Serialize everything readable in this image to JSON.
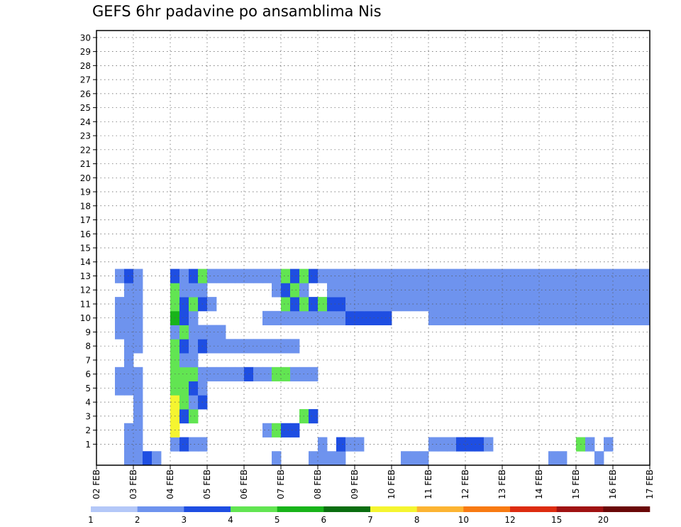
{
  "chart_data": {
    "type": "heatmap",
    "title": "GEFS 6hr padavine po ansamblima Nis",
    "x_tick_labels": [
      "02 FEB",
      "03 FEB",
      "04 FEB",
      "05 FEB",
      "06 FEB",
      "07 FEB",
      "08 FEB",
      "09 FEB",
      "10 FEB",
      "11 FEB",
      "12 FEB",
      "13 FEB",
      "14 FEB",
      "15 FEB",
      "16 FEB",
      "17 FEB"
    ],
    "x_tick_steps": [
      0,
      4,
      8,
      12,
      16,
      20,
      24,
      28,
      32,
      36,
      40,
      44,
      48,
      52,
      56,
      60
    ],
    "n_steps": 60,
    "n_members": 30,
    "y_tick_labels": [
      "1",
      "2",
      "3",
      "4",
      "5",
      "6",
      "7",
      "8",
      "9",
      "10",
      "11",
      "12",
      "13",
      "14",
      "15",
      "16",
      "17",
      "18",
      "19",
      "20",
      "21",
      "22",
      "23",
      "24",
      "25",
      "26",
      "27",
      "28",
      "29",
      "30"
    ],
    "grid": "dotted",
    "legend": {
      "placement": "bottom",
      "colors": [
        "#b4c8f8",
        "#6e93ee",
        "#1e4ee2",
        "#62e552",
        "#18b41a",
        "#0a6e10",
        "#f5f530",
        "#fcb432",
        "#f87a12",
        "#dd2c10",
        "#a01212",
        "#6a0808"
      ],
      "labels": [
        "1",
        "2",
        "3",
        "4",
        "5",
        "6",
        "7",
        "8",
        "10",
        "12",
        "15",
        "20"
      ]
    },
    "cells": [
      [
        0,
        3,
        1,
        1
      ],
      [
        0,
        4,
        1,
        1
      ],
      [
        0,
        5,
        2,
        1
      ],
      [
        0,
        6,
        1,
        1
      ],
      [
        0,
        19,
        1,
        1
      ],
      [
        0,
        23,
        1,
        1
      ],
      [
        0,
        24,
        1,
        1
      ],
      [
        0,
        25,
        1,
        1
      ],
      [
        0,
        26,
        1,
        1
      ],
      [
        0,
        33,
        1,
        1
      ],
      [
        0,
        34,
        1,
        1
      ],
      [
        0,
        35,
        1,
        1
      ],
      [
        0,
        49,
        1,
        1
      ],
      [
        0,
        50,
        1,
        1
      ],
      [
        0,
        54,
        1,
        1
      ],
      [
        1,
        3,
        1,
        1
      ],
      [
        1,
        4,
        1,
        1
      ],
      [
        1,
        8,
        1,
        1
      ],
      [
        1,
        9,
        2,
        1
      ],
      [
        1,
        10,
        1,
        1
      ],
      [
        1,
        11,
        1,
        1
      ],
      [
        1,
        24,
        1,
        1
      ],
      [
        1,
        26,
        2,
        1
      ],
      [
        1,
        27,
        1,
        1
      ],
      [
        1,
        28,
        1,
        1
      ],
      [
        1,
        36,
        1,
        1
      ],
      [
        1,
        37,
        1,
        1
      ],
      [
        1,
        38,
        1,
        1
      ],
      [
        1,
        39,
        2,
        1
      ],
      [
        1,
        40,
        2,
        1
      ],
      [
        1,
        41,
        2,
        1
      ],
      [
        1,
        42,
        1,
        1
      ],
      [
        1,
        52,
        3,
        1
      ],
      [
        1,
        53,
        1,
        1
      ],
      [
        1,
        55,
        1,
        1
      ],
      [
        2,
        3,
        1,
        1
      ],
      [
        2,
        4,
        1,
        1
      ],
      [
        2,
        8,
        6,
        1
      ],
      [
        2,
        18,
        1,
        1
      ],
      [
        2,
        19,
        3,
        1
      ],
      [
        2,
        20,
        2,
        1
      ],
      [
        2,
        21,
        2,
        1
      ],
      [
        3,
        4,
        1,
        1
      ],
      [
        3,
        8,
        6,
        1
      ],
      [
        3,
        9,
        2,
        1
      ],
      [
        3,
        10,
        3,
        1
      ],
      [
        3,
        22,
        3,
        1
      ],
      [
        3,
        23,
        2,
        1
      ],
      [
        4,
        4,
        1,
        1
      ],
      [
        4,
        8,
        6,
        1
      ],
      [
        4,
        9,
        3,
        1
      ],
      [
        4,
        10,
        1,
        1
      ],
      [
        4,
        11,
        2,
        1
      ],
      [
        5,
        2,
        1,
        1
      ],
      [
        5,
        3,
        1,
        1
      ],
      [
        5,
        4,
        1,
        1
      ],
      [
        5,
        8,
        3,
        1
      ],
      [
        5,
        9,
        3,
        1
      ],
      [
        5,
        10,
        2,
        1
      ],
      [
        5,
        11,
        1,
        1
      ],
      [
        6,
        2,
        1,
        1
      ],
      [
        6,
        3,
        1,
        1
      ],
      [
        6,
        4,
        1,
        1
      ],
      [
        6,
        8,
        3,
        1
      ],
      [
        6,
        9,
        3,
        1
      ],
      [
        6,
        10,
        3,
        1
      ],
      [
        6,
        11,
        1,
        1
      ],
      [
        6,
        12,
        1,
        1
      ],
      [
        6,
        13,
        1,
        1
      ],
      [
        6,
        14,
        1,
        1
      ],
      [
        6,
        15,
        1,
        1
      ],
      [
        6,
        16,
        2,
        1
      ],
      [
        6,
        17,
        1,
        1
      ],
      [
        6,
        18,
        1,
        1
      ],
      [
        6,
        19,
        3,
        1
      ],
      [
        6,
        20,
        3,
        1
      ],
      [
        6,
        21,
        1,
        1
      ],
      [
        6,
        22,
        1,
        1
      ],
      [
        6,
        23,
        1,
        1
      ],
      [
        7,
        3,
        1,
        1
      ],
      [
        7,
        8,
        3,
        1
      ],
      [
        7,
        9,
        1,
        1
      ],
      [
        7,
        10,
        1,
        1
      ],
      [
        8,
        3,
        1,
        1
      ],
      [
        8,
        4,
        1,
        1
      ],
      [
        8,
        8,
        3,
        1
      ],
      [
        8,
        9,
        2,
        1
      ],
      [
        8,
        10,
        1,
        1
      ],
      [
        8,
        11,
        2,
        1
      ],
      [
        8,
        12,
        1,
        1
      ],
      [
        8,
        13,
        1,
        1
      ],
      [
        8,
        14,
        1,
        1
      ],
      [
        8,
        15,
        1,
        1
      ],
      [
        8,
        16,
        1,
        1
      ],
      [
        8,
        17,
        1,
        1
      ],
      [
        8,
        18,
        1,
        1
      ],
      [
        8,
        19,
        1,
        1
      ],
      [
        8,
        20,
        1,
        1
      ],
      [
        8,
        21,
        1,
        1
      ],
      [
        9,
        2,
        1,
        1
      ],
      [
        9,
        3,
        1,
        1
      ],
      [
        9,
        4,
        1,
        1
      ],
      [
        9,
        8,
        1,
        1
      ],
      [
        9,
        9,
        3,
        1
      ],
      [
        9,
        10,
        1,
        1
      ],
      [
        9,
        11,
        1,
        1
      ],
      [
        9,
        12,
        1,
        1
      ],
      [
        9,
        13,
        1,
        1
      ],
      [
        10,
        2,
        1,
        1
      ],
      [
        10,
        3,
        1,
        1
      ],
      [
        10,
        4,
        1,
        1
      ],
      [
        10,
        8,
        4,
        1
      ],
      [
        10,
        9,
        2,
        1
      ],
      [
        10,
        10,
        1,
        1
      ],
      [
        10,
        18,
        1,
        1
      ],
      [
        10,
        19,
        1,
        1
      ],
      [
        10,
        20,
        1,
        1
      ],
      [
        10,
        21,
        1,
        1
      ],
      [
        10,
        22,
        1,
        1
      ],
      [
        10,
        23,
        1,
        1
      ],
      [
        10,
        24,
        1,
        1
      ],
      [
        10,
        25,
        1,
        1
      ],
      [
        10,
        26,
        1,
        1
      ],
      [
        10,
        27,
        2,
        1
      ],
      [
        10,
        28,
        2,
        1
      ],
      [
        10,
        29,
        2,
        1
      ],
      [
        10,
        30,
        2,
        1
      ],
      [
        10,
        31,
        2,
        1
      ],
      [
        10,
        36,
        1,
        1
      ],
      [
        10,
        37,
        1,
        1
      ],
      [
        10,
        38,
        1,
        1
      ],
      [
        10,
        39,
        1,
        1
      ],
      [
        10,
        40,
        1,
        1
      ],
      [
        10,
        41,
        1,
        1
      ],
      [
        10,
        42,
        1,
        1
      ],
      [
        10,
        43,
        1,
        1
      ],
      [
        10,
        44,
        1,
        1
      ],
      [
        10,
        45,
        1,
        1
      ],
      [
        10,
        46,
        1,
        1
      ],
      [
        10,
        47,
        1,
        1
      ],
      [
        10,
        48,
        1,
        1
      ],
      [
        10,
        49,
        1,
        1
      ],
      [
        10,
        50,
        1,
        1
      ],
      [
        10,
        51,
        1,
        1
      ],
      [
        10,
        52,
        1,
        1
      ],
      [
        10,
        53,
        1,
        1
      ],
      [
        10,
        54,
        1,
        1
      ],
      [
        10,
        55,
        1,
        1
      ],
      [
        10,
        56,
        1,
        1
      ],
      [
        10,
        57,
        1,
        1
      ],
      [
        10,
        58,
        1,
        1
      ],
      [
        10,
        59,
        1,
        1
      ],
      [
        11,
        2,
        1,
        1
      ],
      [
        11,
        3,
        1,
        1
      ],
      [
        11,
        4,
        1,
        1
      ],
      [
        11,
        8,
        3,
        1
      ],
      [
        11,
        9,
        2,
        1
      ],
      [
        11,
        10,
        3,
        1
      ],
      [
        11,
        11,
        2,
        1
      ],
      [
        11,
        12,
        1,
        1
      ],
      [
        11,
        20,
        3,
        1
      ],
      [
        11,
        21,
        2,
        1
      ],
      [
        11,
        22,
        3,
        1
      ],
      [
        11,
        23,
        2,
        1
      ],
      [
        11,
        24,
        3,
        1
      ],
      [
        11,
        25,
        2,
        1
      ],
      [
        11,
        26,
        2,
        1
      ],
      [
        11,
        27,
        1,
        1
      ],
      [
        11,
        28,
        1,
        1
      ],
      [
        11,
        29,
        1,
        1
      ],
      [
        11,
        30,
        1,
        1
      ],
      [
        11,
        31,
        1,
        1
      ],
      [
        11,
        32,
        1,
        1
      ],
      [
        11,
        33,
        1,
        1
      ],
      [
        11,
        34,
        1,
        1
      ],
      [
        11,
        35,
        1,
        1
      ],
      [
        11,
        36,
        1,
        1
      ],
      [
        11,
        37,
        1,
        1
      ],
      [
        11,
        38,
        1,
        1
      ],
      [
        11,
        39,
        1,
        1
      ],
      [
        11,
        40,
        1,
        1
      ],
      [
        11,
        41,
        1,
        1
      ],
      [
        11,
        42,
        1,
        1
      ],
      [
        11,
        43,
        1,
        1
      ],
      [
        11,
        44,
        1,
        1
      ],
      [
        11,
        45,
        1,
        1
      ],
      [
        11,
        46,
        1,
        1
      ],
      [
        11,
        47,
        1,
        1
      ],
      [
        11,
        48,
        1,
        1
      ],
      [
        11,
        49,
        1,
        1
      ],
      [
        11,
        50,
        1,
        1
      ],
      [
        11,
        51,
        1,
        1
      ],
      [
        11,
        52,
        1,
        1
      ],
      [
        11,
        53,
        1,
        1
      ],
      [
        11,
        54,
        1,
        1
      ],
      [
        11,
        55,
        1,
        1
      ],
      [
        11,
        56,
        1,
        1
      ],
      [
        11,
        57,
        1,
        1
      ],
      [
        11,
        58,
        1,
        1
      ],
      [
        11,
        59,
        1,
        1
      ],
      [
        12,
        3,
        1,
        1
      ],
      [
        12,
        4,
        1,
        1
      ],
      [
        12,
        8,
        3,
        1
      ],
      [
        12,
        9,
        1,
        1
      ],
      [
        12,
        10,
        1,
        1
      ],
      [
        12,
        11,
        1,
        1
      ],
      [
        12,
        19,
        1,
        1
      ],
      [
        12,
        20,
        2,
        1
      ],
      [
        12,
        21,
        3,
        1
      ],
      [
        12,
        22,
        1,
        1
      ],
      [
        12,
        25,
        1,
        1
      ],
      [
        12,
        26,
        1,
        1
      ],
      [
        12,
        27,
        1,
        1
      ],
      [
        12,
        28,
        1,
        1
      ],
      [
        12,
        29,
        1,
        1
      ],
      [
        12,
        30,
        1,
        1
      ],
      [
        12,
        31,
        1,
        1
      ],
      [
        12,
        32,
        1,
        1
      ],
      [
        12,
        33,
        1,
        1
      ],
      [
        12,
        34,
        1,
        1
      ],
      [
        12,
        35,
        1,
        1
      ],
      [
        12,
        36,
        1,
        1
      ],
      [
        12,
        37,
        1,
        1
      ],
      [
        12,
        38,
        1,
        1
      ],
      [
        12,
        39,
        1,
        1
      ],
      [
        12,
        40,
        1,
        1
      ],
      [
        12,
        41,
        1,
        1
      ],
      [
        12,
        42,
        1,
        1
      ],
      [
        12,
        43,
        1,
        1
      ],
      [
        12,
        44,
        1,
        1
      ],
      [
        12,
        45,
        1,
        1
      ],
      [
        12,
        46,
        1,
        1
      ],
      [
        12,
        47,
        1,
        1
      ],
      [
        12,
        48,
        1,
        1
      ],
      [
        12,
        49,
        1,
        1
      ],
      [
        12,
        50,
        1,
        1
      ],
      [
        12,
        51,
        1,
        1
      ],
      [
        12,
        52,
        1,
        1
      ],
      [
        12,
        53,
        1,
        1
      ],
      [
        12,
        54,
        1,
        1
      ],
      [
        12,
        55,
        1,
        1
      ],
      [
        12,
        56,
        1,
        1
      ],
      [
        12,
        57,
        1,
        1
      ],
      [
        12,
        58,
        1,
        1
      ],
      [
        12,
        59,
        1,
        1
      ],
      [
        13,
        2,
        1,
        1
      ],
      [
        13,
        3,
        2,
        1
      ],
      [
        13,
        4,
        1,
        1
      ],
      [
        13,
        8,
        2,
        1
      ],
      [
        13,
        9,
        1,
        1
      ],
      [
        13,
        10,
        2,
        1
      ],
      [
        13,
        11,
        3,
        1
      ],
      [
        13,
        12,
        1,
        1
      ],
      [
        13,
        13,
        1,
        1
      ],
      [
        13,
        14,
        1,
        1
      ],
      [
        13,
        15,
        1,
        1
      ],
      [
        13,
        16,
        1,
        1
      ],
      [
        13,
        17,
        1,
        1
      ],
      [
        13,
        18,
        1,
        1
      ],
      [
        13,
        19,
        1,
        1
      ],
      [
        13,
        20,
        3,
        1
      ],
      [
        13,
        21,
        2,
        1
      ],
      [
        13,
        22,
        3,
        1
      ],
      [
        13,
        23,
        2,
        1
      ],
      [
        13,
        24,
        1,
        1
      ],
      [
        13,
        25,
        1,
        1
      ],
      [
        13,
        26,
        1,
        1
      ],
      [
        13,
        27,
        1,
        1
      ],
      [
        13,
        28,
        1,
        1
      ],
      [
        13,
        29,
        1,
        1
      ],
      [
        13,
        30,
        1,
        1
      ],
      [
        13,
        31,
        1,
        1
      ],
      [
        13,
        32,
        1,
        1
      ],
      [
        13,
        33,
        1,
        1
      ],
      [
        13,
        34,
        1,
        1
      ],
      [
        13,
        35,
        1,
        1
      ],
      [
        13,
        36,
        1,
        1
      ],
      [
        13,
        37,
        1,
        1
      ],
      [
        13,
        38,
        1,
        1
      ],
      [
        13,
        39,
        1,
        1
      ],
      [
        13,
        40,
        1,
        1
      ],
      [
        13,
        41,
        1,
        1
      ],
      [
        13,
        42,
        1,
        1
      ],
      [
        13,
        43,
        1,
        1
      ],
      [
        13,
        44,
        1,
        1
      ],
      [
        13,
        45,
        1,
        1
      ],
      [
        13,
        46,
        1,
        1
      ],
      [
        13,
        47,
        1,
        1
      ],
      [
        13,
        48,
        1,
        1
      ],
      [
        13,
        49,
        1,
        1
      ],
      [
        13,
        50,
        1,
        1
      ],
      [
        13,
        51,
        1,
        1
      ],
      [
        13,
        52,
        1,
        1
      ],
      [
        13,
        53,
        1,
        1
      ],
      [
        13,
        54,
        1,
        1
      ],
      [
        13,
        55,
        1,
        1
      ],
      [
        13,
        56,
        1,
        1
      ],
      [
        13,
        57,
        1,
        1
      ],
      [
        13,
        58,
        1,
        1
      ],
      [
        13,
        59,
        1,
        1
      ]
    ]
  }
}
